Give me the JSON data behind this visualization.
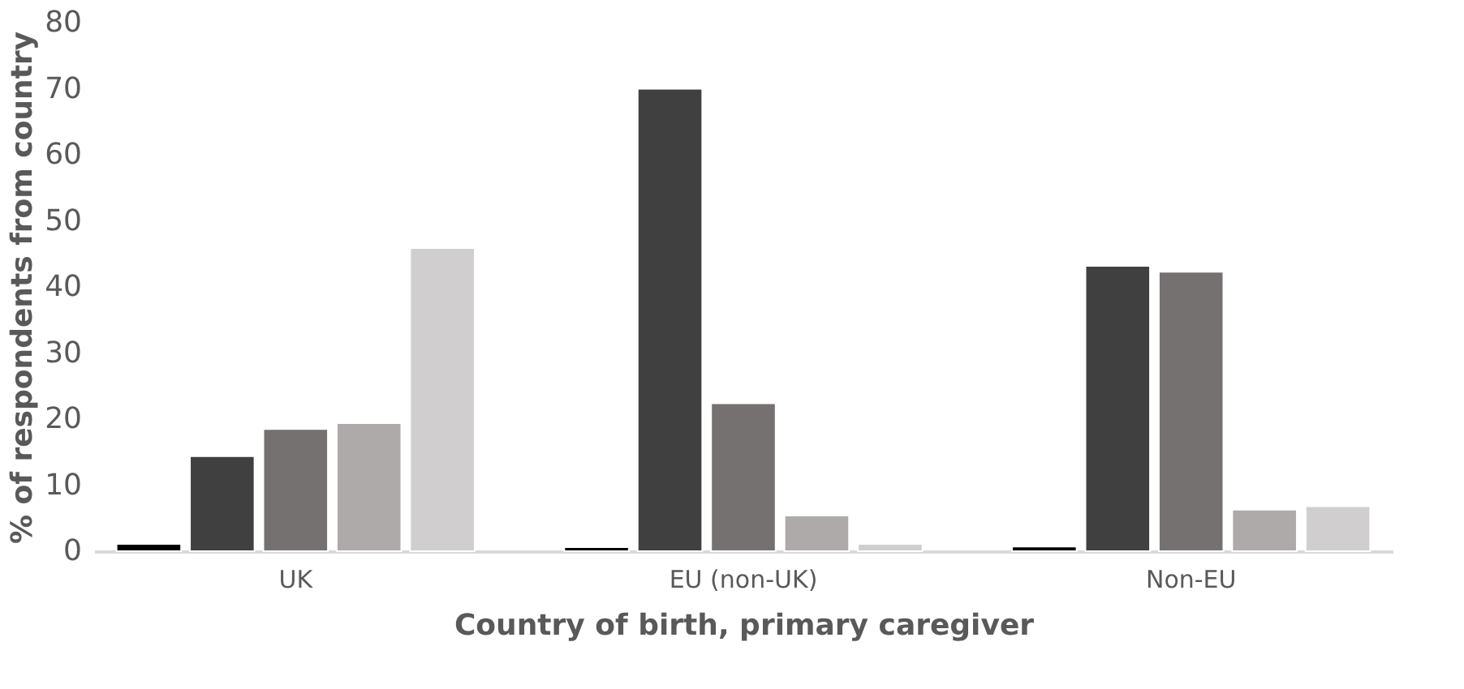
{
  "chart_data": {
    "type": "bar",
    "xlabel": "Country of birth, primary caregiver",
    "ylabel": "% of respondents from country",
    "categories": [
      "UK",
      "EU (non-UK)",
      "Non-EU"
    ],
    "series": [
      {
        "color": "#000000",
        "values": [
          1.1,
          0.6,
          0.7
        ]
      },
      {
        "color": "#404040",
        "values": [
          14.4,
          70.0,
          43.2
        ]
      },
      {
        "color": "#767171",
        "values": [
          18.5,
          22.4,
          42.3
        ]
      },
      {
        "color": "#aeaaaa",
        "values": [
          19.4,
          5.4,
          6.3
        ]
      },
      {
        "color": "#d0cece",
        "values": [
          45.9,
          1.1,
          6.8
        ]
      }
    ],
    "ylim": [
      0,
      80
    ],
    "yticks": [
      0,
      10,
      20,
      30,
      40,
      50,
      60,
      70,
      80
    ],
    "grid": false,
    "legend": false
  }
}
